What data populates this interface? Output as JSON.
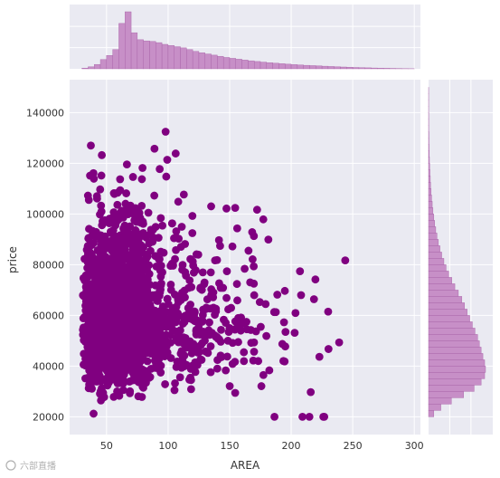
{
  "chart_data": {
    "type": "scatter",
    "kind": "jointplot",
    "xlabel": "AREA",
    "ylabel": "price",
    "xlim": [
      20,
      305
    ],
    "ylim": [
      13000,
      153000
    ],
    "xticks": [
      50,
      100,
      150,
      200,
      250,
      300
    ],
    "yticks": [
      20000,
      40000,
      60000,
      80000,
      100000,
      120000,
      140000
    ],
    "xtick_labels": [
      "50",
      "100",
      "150",
      "200",
      "250",
      "300"
    ],
    "ytick_labels": [
      "20000",
      "40000",
      "60000",
      "80000",
      "100000",
      "120000",
      "140000"
    ],
    "grid": true,
    "colors": {
      "points": "#800080",
      "hist_fill": "#c78fc7",
      "hist_edge": "#a760a7",
      "panel_bg": "#eaeaf2",
      "grid": "#ffffff"
    },
    "distribution": {
      "area_min": 30,
      "area_max": 300,
      "area_mode": 60,
      "price_min": 20000,
      "price_max": 150000,
      "price_mode": 45000
    },
    "marginal_x": {
      "bin_start": 30,
      "bin_width": 5,
      "counts": [
        12,
        34,
        75,
        160,
        230,
        330,
        780,
        980,
        620,
        500,
        480,
        470,
        450,
        420,
        400,
        380,
        360,
        330,
        300,
        275,
        255,
        235,
        215,
        195,
        180,
        165,
        150,
        138,
        126,
        115,
        105,
        96,
        88,
        80,
        72,
        66,
        60,
        55,
        50,
        45,
        40,
        35,
        31,
        27,
        23,
        20,
        17,
        14,
        11,
        9,
        7,
        5,
        3,
        2
      ]
    },
    "marginal_y": {
      "bin_start": 20000,
      "bin_width": 2500,
      "counts": [
        60,
        140,
        260,
        400,
        520,
        600,
        640,
        650,
        640,
        620,
        600,
        580,
        560,
        530,
        500,
        470,
        440,
        410,
        380,
        340,
        300,
        265,
        230,
        200,
        175,
        150,
        130,
        112,
        96,
        82,
        70,
        60,
        50,
        42,
        35,
        29,
        24,
        20,
        16,
        13,
        10,
        8,
        6,
        5,
        4,
        3,
        2,
        2,
        1,
        1,
        1,
        1
      ]
    }
  },
  "watermark": "六部直播"
}
